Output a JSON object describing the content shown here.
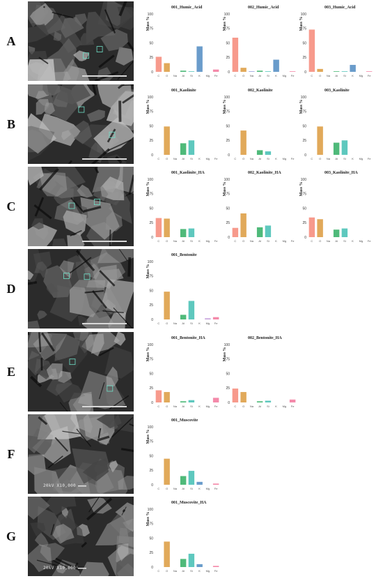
{
  "palette": {
    "C": "#f79a8c",
    "O": "#e1a95a",
    "Na": "#9aa3dc",
    "Al": "#4fba7a",
    "Si": "#5ec8be",
    "K": "#6a9ccb",
    "Mg": "#c7a3dc",
    "Fe": "#f48aaa"
  },
  "rows": [
    {
      "letter": "A",
      "sem_label": ""
    },
    {
      "letter": "B",
      "sem_label": ""
    },
    {
      "letter": "C",
      "sem_label": ""
    },
    {
      "letter": "D",
      "sem_label": ""
    },
    {
      "letter": "E",
      "sem_label": ""
    },
    {
      "letter": "F",
      "sem_label": "20kV  X10,000"
    },
    {
      "letter": "G",
      "sem_label": "20kV  X10,000"
    }
  ],
  "chart_data": [
    {
      "type": "bar",
      "row": 0,
      "col": 0,
      "title": "001_Humic_Acid",
      "ylabel": "Mass %",
      "categories": [
        "C",
        "O",
        "Na",
        "Al",
        "Si",
        "K",
        "Mg",
        "Fe"
      ],
      "values": [
        26,
        15,
        0,
        2,
        1,
        44,
        0,
        4
      ],
      "ylim": [
        0,
        100
      ],
      "yticks": [
        0,
        25,
        50,
        75,
        100
      ]
    },
    {
      "type": "bar",
      "row": 0,
      "col": 1,
      "title": "002_Humic_Acid",
      "ylabel": "Mass %",
      "categories": [
        "C",
        "O",
        "Na",
        "Al",
        "Si",
        "K",
        "Mg",
        "Fe"
      ],
      "values": [
        59,
        7,
        1,
        2,
        1,
        21,
        0,
        1
      ],
      "ylim": [
        0,
        100
      ],
      "yticks": [
        0,
        25,
        50,
        75,
        100
      ]
    },
    {
      "type": "bar",
      "row": 0,
      "col": 2,
      "title": "003_Humic_Acid",
      "ylabel": "Mass %",
      "categories": [
        "C",
        "O",
        "Na",
        "Al",
        "Si",
        "K",
        "Mg",
        "Fe"
      ],
      "values": [
        73,
        5,
        0,
        1,
        1,
        12,
        0,
        1
      ],
      "ylim": [
        0,
        100
      ],
      "yticks": [
        0,
        25,
        50,
        75,
        100
      ]
    },
    {
      "type": "bar",
      "row": 1,
      "col": 0,
      "title": "001_Kaolinite",
      "ylabel": "Mass %",
      "categories": [
        "C",
        "O",
        "Na",
        "Al",
        "Si",
        "K",
        "Mg",
        "Fe"
      ],
      "values": [
        0,
        49,
        0,
        20,
        25,
        0,
        0,
        0
      ],
      "ylim": [
        0,
        100
      ],
      "yticks": [
        0,
        25,
        50,
        75,
        100
      ]
    },
    {
      "type": "bar",
      "row": 1,
      "col": 1,
      "title": "002_Kaolinite",
      "ylabel": "Mass %",
      "categories": [
        "C",
        "O",
        "Na",
        "Al",
        "Si",
        "K",
        "Mg",
        "Fe"
      ],
      "values": [
        0,
        42,
        0,
        8,
        6,
        0,
        0,
        0
      ],
      "ylim": [
        0,
        100
      ],
      "yticks": [
        0,
        25,
        50,
        75,
        100
      ]
    },
    {
      "type": "bar",
      "row": 1,
      "col": 2,
      "title": "003_Kaolinite",
      "ylabel": "Mass %",
      "categories": [
        "C",
        "O",
        "Na",
        "Al",
        "Si",
        "K",
        "Mg",
        "Fe"
      ],
      "values": [
        0,
        49,
        0,
        21,
        25,
        0,
        0,
        0
      ],
      "ylim": [
        0,
        100
      ],
      "yticks": [
        0,
        25,
        50,
        75,
        100
      ]
    },
    {
      "type": "bar",
      "row": 2,
      "col": 0,
      "title": "001_Kaolinite_HA",
      "ylabel": "Mass %",
      "categories": [
        "C",
        "O",
        "Na",
        "Al",
        "Si",
        "K",
        "Mg",
        "Fe"
      ],
      "values": [
        33,
        32,
        0,
        14,
        15,
        0,
        0,
        0
      ],
      "ylim": [
        0,
        100
      ],
      "yticks": [
        0,
        25,
        50,
        75,
        100
      ]
    },
    {
      "type": "bar",
      "row": 2,
      "col": 1,
      "title": "002_Kaolinite_HA",
      "ylabel": "Mass %",
      "categories": [
        "C",
        "O",
        "Na",
        "Al",
        "Si",
        "K",
        "Mg",
        "Fe"
      ],
      "values": [
        16,
        41,
        0,
        17,
        20,
        0,
        0,
        0
      ],
      "ylim": [
        0,
        100
      ],
      "yticks": [
        0,
        25,
        50,
        75,
        100
      ]
    },
    {
      "type": "bar",
      "row": 2,
      "col": 2,
      "title": "003_Kaolinite_HA",
      "ylabel": "Mass %",
      "categories": [
        "C",
        "O",
        "Na",
        "Al",
        "Si",
        "K",
        "Mg",
        "Fe"
      ],
      "values": [
        34,
        31,
        0,
        13,
        15,
        0,
        0,
        0
      ],
      "ylim": [
        0,
        100
      ],
      "yticks": [
        0,
        25,
        50,
        75,
        100
      ]
    },
    {
      "type": "bar",
      "row": 3,
      "col": 0,
      "title": "001_Bentonite",
      "ylabel": "Mass %",
      "categories": [
        "C",
        "O",
        "Na",
        "Al",
        "Si",
        "K",
        "Mg",
        "Fe"
      ],
      "values": [
        0,
        48,
        0,
        8,
        32,
        0,
        2,
        4
      ],
      "ylim": [
        0,
        100
      ],
      "yticks": [
        0,
        25,
        50,
        75,
        100
      ]
    },
    {
      "type": "bar",
      "row": 4,
      "col": 0,
      "title": "001_Bentonite_HA",
      "ylabel": "Mass %",
      "categories": [
        "C",
        "O",
        "Na",
        "Al",
        "Si",
        "K",
        "Mg",
        "Fe"
      ],
      "values": [
        21,
        18,
        0,
        2,
        4,
        0,
        0,
        8
      ],
      "ylim": [
        0,
        100
      ],
      "yticks": [
        0,
        25,
        50,
        75,
        100
      ]
    },
    {
      "type": "bar",
      "row": 4,
      "col": 1,
      "title": "002_Bentonite_HA",
      "ylabel": "Mass %",
      "categories": [
        "C",
        "O",
        "Na",
        "Al",
        "Si",
        "K",
        "Mg",
        "Fe"
      ],
      "values": [
        24,
        18,
        0,
        2,
        3,
        0,
        0,
        5
      ],
      "ylim": [
        0,
        100
      ],
      "yticks": [
        0,
        25,
        50,
        75,
        100
      ]
    },
    {
      "type": "bar",
      "row": 5,
      "col": 0,
      "title": "001_Muscovite",
      "ylabel": "Mass %",
      "categories": [
        "C",
        "O",
        "Na",
        "Al",
        "Si",
        "K",
        "Mg",
        "Fe"
      ],
      "values": [
        0,
        45,
        0,
        15,
        24,
        5,
        0,
        2
      ],
      "ylim": [
        0,
        100
      ],
      "yticks": [
        0,
        25,
        50,
        75,
        100
      ]
    },
    {
      "type": "bar",
      "row": 6,
      "col": 0,
      "title": "001_Muscovite_HA",
      "ylabel": "Mass %",
      "categories": [
        "C",
        "O",
        "Na",
        "Al",
        "Si",
        "K",
        "Mg",
        "Fe"
      ],
      "values": [
        0,
        44,
        0,
        14,
        23,
        5,
        0,
        2
      ],
      "ylim": [
        0,
        100
      ],
      "yticks": [
        0,
        25,
        50,
        75,
        100
      ]
    }
  ]
}
